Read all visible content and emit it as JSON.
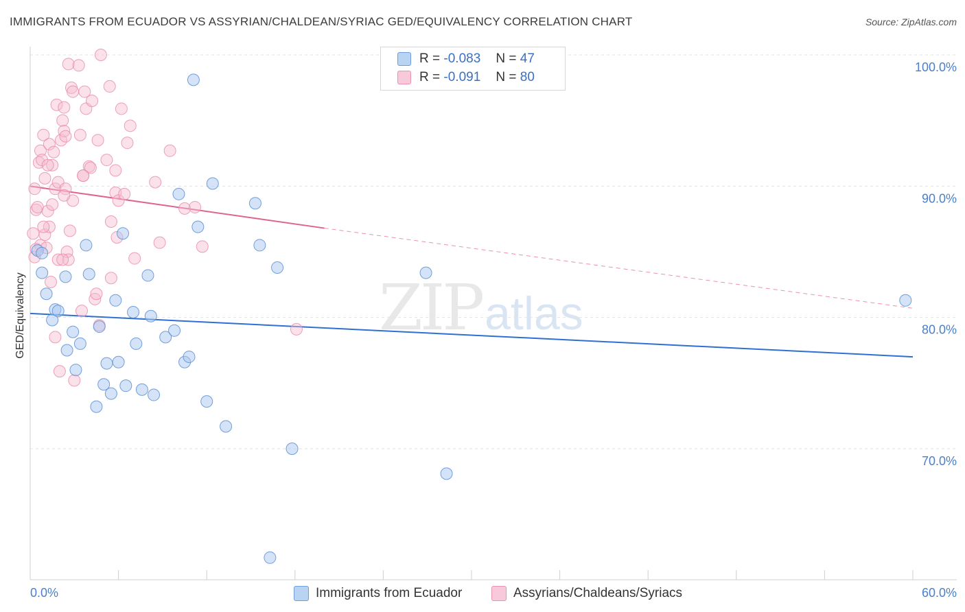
{
  "title": "IMMIGRANTS FROM ECUADOR VS ASSYRIAN/CHALDEAN/SYRIAC GED/EQUIVALENCY CORRELATION CHART",
  "source": "Source: ZipAtlas.com",
  "watermark": {
    "zip": "ZIP",
    "atlas": "atlas"
  },
  "legend": {
    "rows": [
      {
        "r_label": "R =",
        "r_value": "-0.083",
        "n_label": "N =",
        "n_value": "47"
      },
      {
        "r_label": "R =",
        "r_value": "-0.091",
        "n_label": "N =",
        "n_value": "80"
      }
    ]
  },
  "bottom_legend": {
    "series1": "Immigrants from Ecuador",
    "series2": "Assyrians/Chaldeans/Syriacs"
  },
  "chart_data": {
    "type": "scatter",
    "title": "IMMIGRANTS FROM ECUADOR VS ASSYRIAN/CHALDEAN/SYRIAC GED/EQUIVALENCY CORRELATION CHART",
    "xlabel": "",
    "ylabel": "GED/Equivalency",
    "xlim": [
      0,
      60
    ],
    "ylim": [
      60,
      101
    ],
    "x_tick_labels": [
      "0.0%",
      "60.0%"
    ],
    "y_ticks": [
      70,
      80,
      90,
      100
    ],
    "y_tick_labels": [
      "70.0%",
      "80.0%",
      "90.0%",
      "100.0%"
    ],
    "grid": true,
    "colors": {
      "series1_fill": "#a9c8ef",
      "series1_stroke": "#5b8fd6",
      "series1_line": "#2e6fd1",
      "series2_fill": "#f6bcd0",
      "series2_stroke": "#e88aa8",
      "series2_line": "#e0628f"
    },
    "series": [
      {
        "name": "Immigrants from Ecuador",
        "R": -0.083,
        "N": 47,
        "trend": {
          "x0": 0,
          "y0": 80.3,
          "x1": 60,
          "y1": 77.0
        },
        "points": [
          [
            0.5,
            85.1
          ],
          [
            0.8,
            84.9
          ],
          [
            0.8,
            83.4
          ],
          [
            1.1,
            81.8
          ],
          [
            1.5,
            79.8
          ],
          [
            1.7,
            80.6
          ],
          [
            1.9,
            80.5
          ],
          [
            2.4,
            83.1
          ],
          [
            2.5,
            77.5
          ],
          [
            2.9,
            78.9
          ],
          [
            3.1,
            76.0
          ],
          [
            3.4,
            78.0
          ],
          [
            3.8,
            85.5
          ],
          [
            4.0,
            83.3
          ],
          [
            4.5,
            73.2
          ],
          [
            4.7,
            79.3
          ],
          [
            5.0,
            74.9
          ],
          [
            5.2,
            76.5
          ],
          [
            5.5,
            74.2
          ],
          [
            5.8,
            81.3
          ],
          [
            6.0,
            76.6
          ],
          [
            6.3,
            86.4
          ],
          [
            6.5,
            74.8
          ],
          [
            7.0,
            80.4
          ],
          [
            7.2,
            78.0
          ],
          [
            7.6,
            74.5
          ],
          [
            8.0,
            83.2
          ],
          [
            8.2,
            80.1
          ],
          [
            8.4,
            74.1
          ],
          [
            9.2,
            78.5
          ],
          [
            9.8,
            79.0
          ],
          [
            10.1,
            89.4
          ],
          [
            10.5,
            76.6
          ],
          [
            10.8,
            77.0
          ],
          [
            11.1,
            98.1
          ],
          [
            11.4,
            86.9
          ],
          [
            12.0,
            73.6
          ],
          [
            12.4,
            90.2
          ],
          [
            13.3,
            71.7
          ],
          [
            15.3,
            88.7
          ],
          [
            15.6,
            85.5
          ],
          [
            16.3,
            61.7
          ],
          [
            16.8,
            83.8
          ],
          [
            17.8,
            70.0
          ],
          [
            26.9,
            83.4
          ],
          [
            28.3,
            68.1
          ],
          [
            59.5,
            81.3
          ]
        ]
      },
      {
        "name": "Assyrians/Chaldeans/Syriacs",
        "R": -0.091,
        "N": 80,
        "trend": {
          "x0": 0,
          "y0": 90.0,
          "x1": 20,
          "y1": 86.8,
          "dashed_to_x": 60,
          "dashed_to_y": 80.7
        },
        "points": [
          [
            0.2,
            86.4
          ],
          [
            0.3,
            84.6
          ],
          [
            0.3,
            89.8
          ],
          [
            0.4,
            88.2
          ],
          [
            0.5,
            88.4
          ],
          [
            0.6,
            91.8
          ],
          [
            0.7,
            92.7
          ],
          [
            0.7,
            85.5
          ],
          [
            0.8,
            92.0
          ],
          [
            0.9,
            93.9
          ],
          [
            1.0,
            86.3
          ],
          [
            1.0,
            90.6
          ],
          [
            1.1,
            85.3
          ],
          [
            1.2,
            88.1
          ],
          [
            1.3,
            93.2
          ],
          [
            1.3,
            86.9
          ],
          [
            1.4,
            82.7
          ],
          [
            1.5,
            91.6
          ],
          [
            1.5,
            88.6
          ],
          [
            1.6,
            92.6
          ],
          [
            1.7,
            78.5
          ],
          [
            1.7,
            89.8
          ],
          [
            1.8,
            96.2
          ],
          [
            1.9,
            90.3
          ],
          [
            1.9,
            84.4
          ],
          [
            2.0,
            75.9
          ],
          [
            2.1,
            93.5
          ],
          [
            2.2,
            95.0
          ],
          [
            2.3,
            96.0
          ],
          [
            2.3,
            94.2
          ],
          [
            2.4,
            89.8
          ],
          [
            2.4,
            93.8
          ],
          [
            2.5,
            85.0
          ],
          [
            2.6,
            84.4
          ],
          [
            2.6,
            99.3
          ],
          [
            2.7,
            86.6
          ],
          [
            2.8,
            97.5
          ],
          [
            2.9,
            88.9
          ],
          [
            2.9,
            97.2
          ],
          [
            3.0,
            75.2
          ],
          [
            3.3,
            99.2
          ],
          [
            3.4,
            93.9
          ],
          [
            3.5,
            80.5
          ],
          [
            3.6,
            90.8
          ],
          [
            3.7,
            97.2
          ],
          [
            3.8,
            95.9
          ],
          [
            4.0,
            91.5
          ],
          [
            4.1,
            91.4
          ],
          [
            4.2,
            96.5
          ],
          [
            4.4,
            81.4
          ],
          [
            4.5,
            81.8
          ],
          [
            4.6,
            93.5
          ],
          [
            4.7,
            79.4
          ],
          [
            4.8,
            100.0
          ],
          [
            5.2,
            92.0
          ],
          [
            5.4,
            97.6
          ],
          [
            5.5,
            83.0
          ],
          [
            5.5,
            87.3
          ],
          [
            5.8,
            89.5
          ],
          [
            5.8,
            91.2
          ],
          [
            5.9,
            86.1
          ],
          [
            6.0,
            88.9
          ],
          [
            6.2,
            95.9
          ],
          [
            6.4,
            89.4
          ],
          [
            6.6,
            93.3
          ],
          [
            6.8,
            94.6
          ],
          [
            7.1,
            84.5
          ],
          [
            8.5,
            90.3
          ],
          [
            8.8,
            85.7
          ],
          [
            9.5,
            92.7
          ],
          [
            10.5,
            88.3
          ],
          [
            11.2,
            88.4
          ],
          [
            11.7,
            85.4
          ],
          [
            18.1,
            79.1
          ],
          [
            0.4,
            85.2
          ],
          [
            1.2,
            91.6
          ],
          [
            0.9,
            86.9
          ],
          [
            2.2,
            84.4
          ],
          [
            3.6,
            90.8
          ],
          [
            2.3,
            89.3
          ]
        ]
      }
    ]
  }
}
